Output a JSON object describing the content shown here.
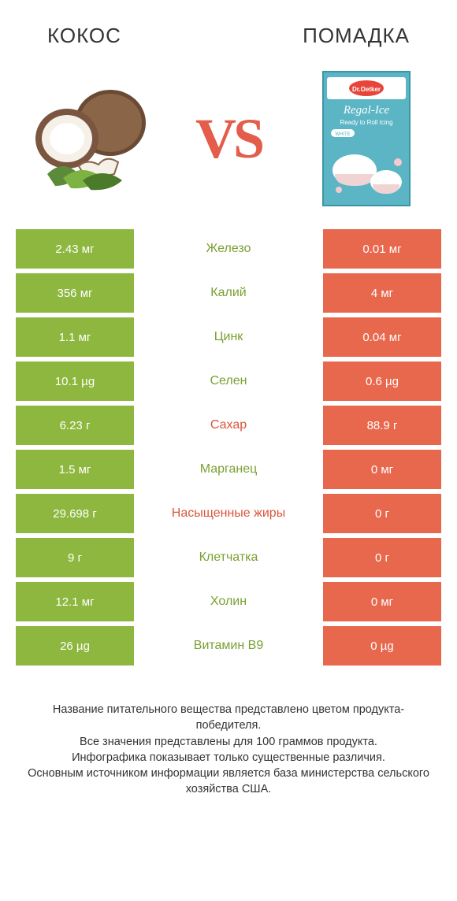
{
  "colors": {
    "green": "#8eb73f",
    "orange": "#e8684e",
    "text_green": "#7aa032",
    "text_orange": "#d9553e",
    "title": "#333333",
    "footer": "#333333"
  },
  "header": {
    "left_title": "КОКОС",
    "right_title": "ПОМАДКА"
  },
  "vs_label": "VS",
  "rows": [
    {
      "nutrient": "Железо",
      "left": "2.43 мг",
      "right": "0.01 мг",
      "winner": "left"
    },
    {
      "nutrient": "Калий",
      "left": "356 мг",
      "right": "4 мг",
      "winner": "left"
    },
    {
      "nutrient": "Цинк",
      "left": "1.1 мг",
      "right": "0.04 мг",
      "winner": "left"
    },
    {
      "nutrient": "Селен",
      "left": "10.1 µg",
      "right": "0.6 µg",
      "winner": "left"
    },
    {
      "nutrient": "Сахар",
      "left": "6.23 г",
      "right": "88.9 г",
      "winner": "right"
    },
    {
      "nutrient": "Марганец",
      "left": "1.5 мг",
      "right": "0 мг",
      "winner": "left"
    },
    {
      "nutrient": "Насыщенные жиры",
      "left": "29.698 г",
      "right": "0 г",
      "winner": "right"
    },
    {
      "nutrient": "Клетчатка",
      "left": "9 г",
      "right": "0 г",
      "winner": "left"
    },
    {
      "nutrient": "Холин",
      "left": "12.1 мг",
      "right": "0 мг",
      "winner": "left"
    },
    {
      "nutrient": "Витамин B9",
      "left": "26 µg",
      "right": "0 µg",
      "winner": "left"
    }
  ],
  "footer_lines": [
    "Название питательного вещества представлено цветом продукта-победителя.",
    "Все значения представлены для 100 граммов продукта.",
    "Инфографика показывает только существенные различия.",
    "Основным источником информации является база министерства сельского хозяйства США."
  ]
}
